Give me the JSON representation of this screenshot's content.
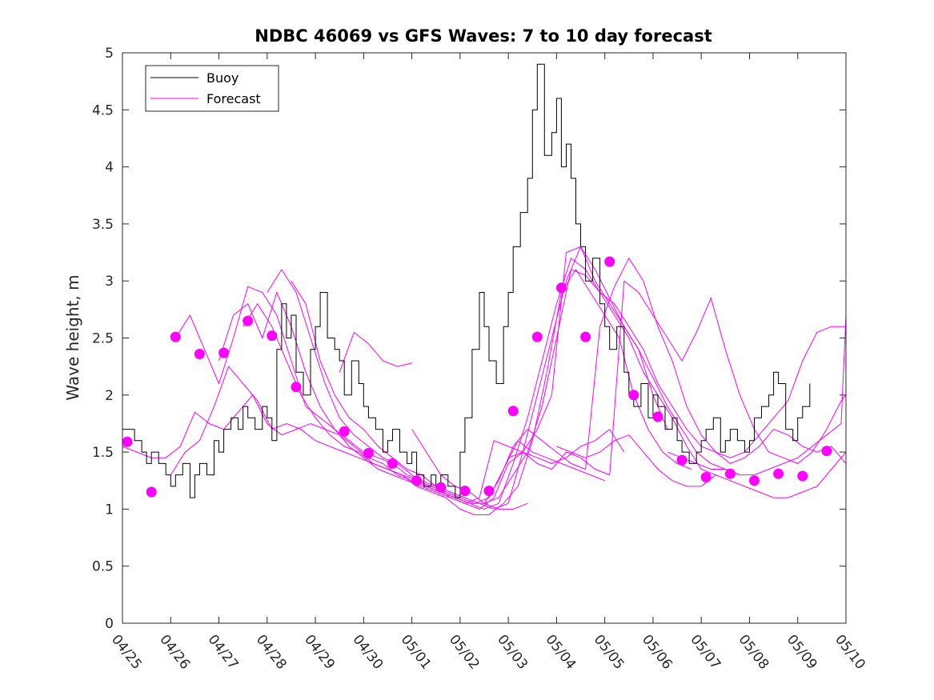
{
  "chart_data": {
    "type": "line",
    "title": "NDBC 46069 vs GFS Waves: 7 to 10 day forecast",
    "xlabel": "",
    "ylabel": "Wave height, m",
    "x_ticks": [
      "04/25",
      "04/26",
      "04/27",
      "04/28",
      "04/29",
      "04/30",
      "05/01",
      "05/02",
      "05/03",
      "05/04",
      "05/05",
      "05/06",
      "05/07",
      "05/08",
      "05/09",
      "05/10"
    ],
    "xlim": [
      0,
      15
    ],
    "ylim": [
      0,
      5
    ],
    "y_ticks": [
      "0",
      "0.5",
      "1",
      "1.5",
      "2",
      "2.5",
      "3",
      "3.5",
      "4",
      "4.5",
      "5"
    ],
    "legend": {
      "position": "top-left",
      "entries": [
        "Buoy",
        "Forecast"
      ]
    },
    "colors": {
      "buoy": "#000000",
      "forecast": "#ff00ff"
    },
    "x_units": "days since 04/25 00:00",
    "series": [
      {
        "name": "Buoy",
        "x": [
          0,
          0.25,
          0.4,
          0.5,
          0.6,
          0.75,
          0.9,
          1.0,
          1.1,
          1.25,
          1.4,
          1.5,
          1.6,
          1.75,
          1.9,
          2.0,
          2.1,
          2.25,
          2.4,
          2.5,
          2.6,
          2.75,
          2.9,
          3.0,
          3.1,
          3.2,
          3.3,
          3.4,
          3.5,
          3.6,
          3.75,
          3.9,
          4.0,
          4.1,
          4.25,
          4.4,
          4.5,
          4.6,
          4.75,
          4.9,
          5.0,
          5.1,
          5.25,
          5.4,
          5.5,
          5.6,
          5.75,
          5.9,
          6.0,
          6.1,
          6.25,
          6.4,
          6.5,
          6.6,
          6.75,
          6.9,
          7.0,
          7.1,
          7.25,
          7.4,
          7.5,
          7.6,
          7.75,
          7.9,
          8.0,
          8.1,
          8.25,
          8.4,
          8.5,
          8.6,
          8.75,
          8.9,
          9.0,
          9.1,
          9.2,
          9.3,
          9.4,
          9.5,
          9.6,
          9.75,
          9.9,
          10.0,
          10.1,
          10.25,
          10.4,
          10.5,
          10.6,
          10.75,
          10.9,
          11.0,
          11.1,
          11.25,
          11.4,
          11.5,
          11.6,
          11.75,
          11.9,
          12.0,
          12.1,
          12.25,
          12.4,
          12.5,
          12.6,
          12.75,
          12.9,
          13.0,
          13.1,
          13.25,
          13.4,
          13.5,
          13.6,
          13.75,
          13.9,
          14.0,
          14.1,
          14.25
        ],
        "y": [
          1.7,
          1.6,
          1.5,
          1.4,
          1.5,
          1.4,
          1.3,
          1.2,
          1.3,
          1.4,
          1.1,
          1.3,
          1.4,
          1.3,
          1.6,
          1.5,
          1.7,
          1.8,
          1.7,
          1.9,
          1.8,
          1.7,
          1.9,
          1.8,
          1.6,
          2.4,
          2.8,
          2.5,
          2.7,
          2.2,
          2.0,
          2.4,
          2.6,
          2.9,
          2.5,
          2.4,
          2.3,
          2.0,
          2.3,
          2.1,
          1.9,
          1.8,
          1.7,
          1.5,
          1.6,
          1.7,
          1.5,
          1.4,
          1.5,
          1.3,
          1.2,
          1.3,
          1.2,
          1.3,
          1.2,
          1.1,
          1.5,
          1.8,
          2.4,
          2.9,
          2.6,
          2.3,
          2.1,
          2.6,
          2.9,
          3.3,
          3.6,
          3.9,
          4.5,
          4.9,
          4.1,
          4.3,
          4.6,
          4.0,
          4.2,
          3.9,
          3.5,
          3.3,
          3.0,
          3.2,
          2.8,
          2.6,
          2.4,
          2.6,
          2.2,
          2.0,
          1.9,
          2.1,
          1.8,
          2.0,
          1.9,
          1.7,
          1.8,
          1.6,
          1.5,
          1.4,
          1.5,
          1.6,
          1.7,
          1.8,
          1.5,
          1.6,
          1.7,
          1.6,
          1.5,
          1.6,
          1.8,
          1.9,
          2.0,
          2.2,
          2.1,
          1.7,
          1.6,
          1.8,
          1.9,
          2.1
        ]
      },
      {
        "name": "Forecast",
        "x": [
          0.1,
          0.6,
          1.1,
          1.6,
          2.1,
          2.6,
          3.1,
          3.6,
          4.1,
          4.6,
          5.1,
          5.6,
          6.1,
          6.6,
          7.1,
          7.6,
          8.1,
          8.6,
          9.1,
          9.6,
          10.1,
          10.6,
          11.1,
          11.6,
          12.1,
          12.6,
          13.1,
          13.6,
          14.1,
          14.6
        ],
        "y": [
          1.59,
          1.15,
          2.51,
          2.36,
          2.37,
          2.65,
          2.52,
          2.07,
          null,
          1.68,
          1.49,
          1.4,
          1.25,
          1.19,
          1.16,
          1.16,
          1.86,
          2.51,
          2.94,
          2.51,
          3.17,
          2.0,
          1.81,
          1.43,
          1.28,
          1.31,
          1.25,
          1.31,
          1.29,
          1.51
        ]
      }
    ],
    "forecast_runs": [
      {
        "x": [
          0,
          0.3,
          0.6,
          0.9,
          1.2,
          1.5,
          1.8,
          2.1,
          2.4,
          2.7,
          3.0,
          3.3,
          3.6,
          3.9,
          4.2,
          4.5,
          4.8,
          5.1,
          5.4,
          5.7,
          6.0,
          6.3,
          6.6,
          6.9,
          7.2,
          7.5,
          7.8,
          8.1,
          8.4
        ],
        "y": [
          1.55,
          1.5,
          1.45,
          1.45,
          1.55,
          1.85,
          1.75,
          1.7,
          1.85,
          2.0,
          1.75,
          1.65,
          1.7,
          1.75,
          1.7,
          1.65,
          1.55,
          1.45,
          1.4,
          1.3,
          1.25,
          1.2,
          1.15,
          1.1,
          1.05,
          1.05,
          1.0,
          1.0,
          1.05
        ]
      },
      {
        "x": [
          1.0,
          1.3,
          1.6,
          1.9,
          2.2,
          2.5,
          2.8,
          3.1,
          3.4,
          3.7,
          4.0,
          4.3,
          4.6,
          4.9,
          5.2,
          5.5,
          5.8,
          6.1,
          6.4,
          6.7,
          7.0,
          7.3,
          7.6,
          7.9,
          8.2,
          8.5,
          8.8,
          9.1,
          9.4,
          9.7,
          10.0
        ],
        "y": [
          1.3,
          1.5,
          1.6,
          1.9,
          2.25,
          2.1,
          1.95,
          1.7,
          1.75,
          1.7,
          1.6,
          1.55,
          1.5,
          1.45,
          1.4,
          1.35,
          1.3,
          1.25,
          1.2,
          1.15,
          1.1,
          1.05,
          1.1,
          1.35,
          1.6,
          1.5,
          1.45,
          1.4,
          1.35,
          1.3,
          1.25
        ]
      },
      {
        "x": [
          1.1,
          1.4,
          1.7,
          2.0,
          2.3,
          2.6,
          2.9,
          3.2,
          3.5,
          3.8,
          4.1,
          4.4,
          4.7,
          5.0,
          5.3,
          5.6,
          5.9,
          6.2,
          6.5,
          6.8,
          7.1,
          7.4,
          7.7,
          8.0,
          8.3,
          8.6,
          8.9,
          9.2,
          9.5,
          9.8,
          10.1,
          10.4
        ],
        "y": [
          2.5,
          2.7,
          2.4,
          2.1,
          2.5,
          2.95,
          2.9,
          2.7,
          2.3,
          1.9,
          1.8,
          1.7,
          1.55,
          1.45,
          1.35,
          1.3,
          1.25,
          1.2,
          1.15,
          1.1,
          1.05,
          1.1,
          1.6,
          1.55,
          1.5,
          1.45,
          1.4,
          1.45,
          1.55,
          1.6,
          1.7,
          1.5
        ]
      },
      {
        "x": [
          2.0,
          2.3,
          2.6,
          2.9,
          3.2,
          3.5,
          3.8,
          4.1,
          4.4,
          4.7,
          5.0,
          5.3,
          5.6,
          5.9,
          6.2,
          6.5,
          6.8,
          7.1,
          7.4,
          7.7,
          8.0,
          8.3,
          8.6,
          8.9,
          9.2,
          9.5,
          9.8,
          10.1,
          10.4,
          10.7,
          11.0,
          11.3
        ],
        "y": [
          2.3,
          2.7,
          2.8,
          2.5,
          2.9,
          2.6,
          2.2,
          1.9,
          1.7,
          1.6,
          1.5,
          1.45,
          1.4,
          1.3,
          1.25,
          1.2,
          1.1,
          1.05,
          1.0,
          1.1,
          1.4,
          1.5,
          1.7,
          2.0,
          3.25,
          3.3,
          3.0,
          2.8,
          2.6,
          2.4,
          2.0,
          1.7
        ]
      },
      {
        "x": [
          2.5,
          2.8,
          3.1,
          3.4,
          3.7,
          4.0,
          4.3,
          4.6,
          4.9,
          5.2,
          5.5,
          5.8,
          6.1,
          6.4,
          6.7,
          7.0,
          7.3,
          7.6,
          7.9,
          8.2,
          8.5,
          8.8,
          9.1,
          9.4,
          9.7,
          10.0,
          10.3,
          10.6,
          10.9,
          11.2,
          11.5,
          11.8
        ],
        "y": [
          2.6,
          2.8,
          2.6,
          2.3,
          2.0,
          1.8,
          1.65,
          1.55,
          1.5,
          1.4,
          1.35,
          1.3,
          1.2,
          1.15,
          1.1,
          1.0,
          0.95,
          0.95,
          1.05,
          1.2,
          1.6,
          2.2,
          2.9,
          3.1,
          2.9,
          2.7,
          2.5,
          2.0,
          1.7,
          1.5,
          1.4,
          1.35
        ]
      },
      {
        "x": [
          3.0,
          3.3,
          3.6,
          3.9,
          4.2,
          4.5,
          4.8,
          5.1,
          5.4,
          5.7,
          6.0,
          6.3,
          6.6,
          6.9,
          7.2,
          7.5,
          7.8,
          8.1,
          8.4,
          8.7,
          9.0,
          9.3,
          9.6,
          9.9,
          10.2,
          10.5,
          10.8,
          11.1,
          11.4,
          11.7,
          12.0,
          12.3
        ],
        "y": [
          2.9,
          3.1,
          2.9,
          2.5,
          2.1,
          1.8,
          1.65,
          1.55,
          1.45,
          1.4,
          1.3,
          1.2,
          1.15,
          1.1,
          1.05,
          1.0,
          1.05,
          1.4,
          1.8,
          2.3,
          2.8,
          3.2,
          3.1,
          2.9,
          2.7,
          2.5,
          2.2,
          2.0,
          1.8,
          1.55,
          1.35,
          1.3
        ]
      },
      {
        "x": [
          3.5,
          3.8,
          4.1,
          4.4,
          4.7,
          5.0,
          5.3,
          5.6,
          5.9,
          6.2,
          6.5,
          6.8,
          7.1,
          7.4,
          7.7,
          8.0,
          8.3,
          8.6,
          8.9,
          9.2,
          9.5,
          9.8,
          10.1,
          10.4,
          10.7,
          11.0,
          11.3,
          11.6,
          11.9,
          12.2,
          12.5,
          12.8
        ],
        "y": [
          3.0,
          2.8,
          2.3,
          2.0,
          1.8,
          1.7,
          1.55,
          1.45,
          1.35,
          1.3,
          1.2,
          1.15,
          1.1,
          1.05,
          1.0,
          1.05,
          1.5,
          2.0,
          2.5,
          3.0,
          3.3,
          3.1,
          2.85,
          2.6,
          2.4,
          2.15,
          1.9,
          1.7,
          1.5,
          1.4,
          1.35,
          1.3
        ]
      },
      {
        "x": [
          4.5,
          4.8,
          5.1,
          5.4,
          5.7,
          6.0
        ],
        "y": [
          2.2,
          2.55,
          2.45,
          2.3,
          2.25,
          2.28
        ]
      },
      {
        "x": [
          6.0,
          6.3,
          6.6,
          6.9,
          7.2,
          7.5,
          7.8,
          8.1,
          8.4,
          8.7,
          9.0,
          9.3,
          9.6,
          9.9,
          10.2,
          10.5,
          10.8,
          11.1,
          11.4,
          11.7,
          12.0,
          12.3,
          12.6,
          12.9,
          13.2,
          13.5,
          13.8,
          14.1,
          14.4,
          14.7,
          15.0
        ],
        "y": [
          1.7,
          1.5,
          1.3,
          1.2,
          1.15,
          1.05,
          1.1,
          1.3,
          1.5,
          1.9,
          2.5,
          3.1,
          3.05,
          2.9,
          2.8,
          2.6,
          2.4,
          2.1,
          1.9,
          1.7,
          1.55,
          1.5,
          1.45,
          1.5,
          1.65,
          1.8,
          1.95,
          2.3,
          2.55,
          2.6,
          2.6
        ]
      },
      {
        "x": [
          7.5,
          7.8,
          8.1,
          8.4,
          8.7,
          9.0,
          9.3,
          9.6,
          9.9,
          10.2,
          10.5,
          10.8,
          11.1,
          11.4,
          11.7,
          12.0,
          12.3,
          12.6,
          12.9,
          13.2,
          13.5,
          13.8,
          14.1,
          14.4,
          14.7,
          15.0
        ],
        "y": [
          1.05,
          1.25,
          1.55,
          1.7,
          1.6,
          1.5,
          1.4,
          1.35,
          2.6,
          2.95,
          3.2,
          3.0,
          2.6,
          2.3,
          1.9,
          1.65,
          1.5,
          1.4,
          1.45,
          1.55,
          1.7,
          1.65,
          1.55,
          1.5,
          1.55,
          1.4
        ]
      },
      {
        "x": [
          8.0,
          8.3,
          8.6,
          8.9,
          9.2,
          9.5,
          9.8,
          10.1,
          10.4,
          10.7,
          11.0,
          11.3,
          11.6,
          11.9,
          12.2,
          12.5,
          12.8,
          13.1,
          13.4,
          13.7,
          14.0,
          14.3,
          14.6,
          14.9,
          15.0
        ],
        "y": [
          1.45,
          1.5,
          1.4,
          1.35,
          1.5,
          1.45,
          1.35,
          1.3,
          3.0,
          2.9,
          2.7,
          2.5,
          2.3,
          2.55,
          2.85,
          2.4,
          2.0,
          1.7,
          1.5,
          1.45,
          1.4,
          1.5,
          1.7,
          1.95,
          2.0
        ]
      },
      {
        "x": [
          9.0,
          9.3,
          9.6,
          9.9,
          10.2,
          10.5,
          10.8,
          11.1,
          11.4,
          11.7,
          12.0,
          12.3,
          12.6,
          12.9,
          13.2,
          13.5,
          13.8,
          14.1,
          14.4,
          14.7,
          15.0
        ],
        "y": [
          1.55,
          1.5,
          1.45,
          1.5,
          1.6,
          1.65,
          1.5,
          1.35,
          1.25,
          1.2,
          1.2,
          1.3,
          1.25,
          1.2,
          1.15,
          1.1,
          1.1,
          1.15,
          1.2,
          1.35,
          1.5
        ]
      },
      {
        "x": [
          11.3,
          11.6,
          11.9,
          12.2,
          12.5,
          12.8,
          13.1,
          13.4,
          13.7,
          14.0,
          14.3,
          14.6,
          14.9,
          15.0
        ],
        "y": [
          1.5,
          1.45,
          1.4,
          1.35,
          1.35,
          1.3,
          1.3,
          1.35,
          1.4,
          1.45,
          1.55,
          1.65,
          1.75,
          2.7
        ]
      }
    ]
  }
}
